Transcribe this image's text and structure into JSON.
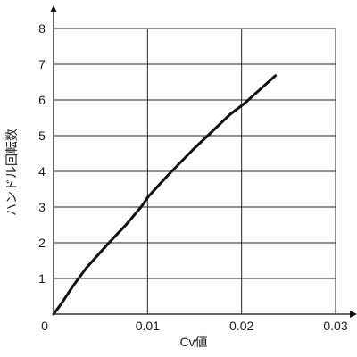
{
  "chart_data": {
    "type": "line",
    "xlabel": "Cv値",
    "ylabel": "ハンドル回転数",
    "xlim": [
      0,
      0.03
    ],
    "ylim": [
      0,
      8
    ],
    "xticks": [
      "0",
      "0.01",
      "0.02",
      "0.03"
    ],
    "yticks": [
      "1",
      "2",
      "3",
      "4",
      "5",
      "6",
      "7",
      "8"
    ],
    "grid": true,
    "series": [
      {
        "x": [
          0,
          0.0008,
          0.0021,
          0.0035,
          0.0059,
          0.0077,
          0.0093,
          0.0101,
          0.0122,
          0.0148,
          0.0168,
          0.0188,
          0.0203,
          0.0236
        ],
        "y": [
          0,
          0.28,
          0.8,
          1.3,
          2.0,
          2.5,
          3.0,
          3.3,
          3.9,
          4.6,
          5.1,
          5.6,
          5.9,
          6.68
        ]
      }
    ],
    "colors": {
      "line": "#111111",
      "grid": "#222222",
      "axis": "#111111"
    }
  }
}
